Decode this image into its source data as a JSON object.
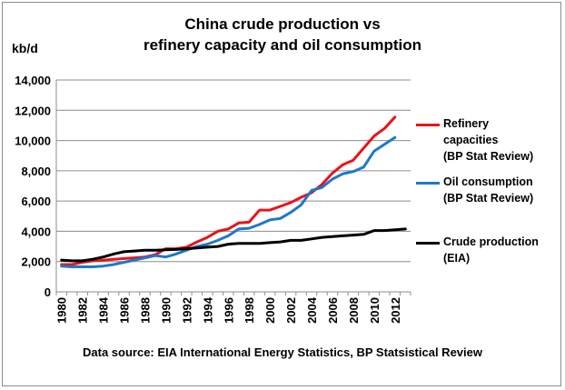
{
  "title_line1": "China crude production vs",
  "title_line2": "refinery capacity and oil consumption",
  "units_label": "kb/d",
  "source_text": "Data source: EIA International Energy Statistics, BP Statsistical Review",
  "chart_data": {
    "type": "line",
    "title": "China crude production vs refinery capacity and oil consumption",
    "ylabel": "kb/d",
    "xlabel": "",
    "ylim": [
      0,
      14000
    ],
    "yticks": [
      "0",
      "2,000",
      "4,000",
      "6,000",
      "8,000",
      "10,000",
      "12,000",
      "14,000"
    ],
    "xticks": [
      "1980",
      "1982",
      "1984",
      "1986",
      "1988",
      "1990",
      "1992",
      "1994",
      "1996",
      "1998",
      "2000",
      "2002",
      "2004",
      "2006",
      "2008",
      "2010",
      "2012"
    ],
    "grid": "horizontal",
    "legend_position": "right",
    "series": [
      {
        "name": "Refinery capacities (BP Stat Review)",
        "color": "#e8141b",
        "x": [
          1980,
          1981,
          1982,
          1983,
          1984,
          1985,
          1986,
          1987,
          1988,
          1989,
          1990,
          1991,
          1992,
          1993,
          1994,
          1995,
          1996,
          1997,
          1998,
          1999,
          2000,
          2001,
          2002,
          2003,
          2004,
          2005,
          2006,
          2007,
          2008,
          2009,
          2010,
          2011,
          2012
        ],
        "values": [
          1800,
          1800,
          1950,
          2050,
          2100,
          2150,
          2200,
          2250,
          2300,
          2450,
          2850,
          2850,
          2950,
          3300,
          3600,
          4000,
          4150,
          4550,
          4600,
          5400,
          5400,
          5650,
          5900,
          6250,
          6550,
          7100,
          7850,
          8400,
          8700,
          9500,
          10300,
          10800,
          11550
        ]
      },
      {
        "name": "Oil consumption (BP Stat Review)",
        "color": "#1f78c8",
        "x": [
          1980,
          1981,
          1982,
          1983,
          1984,
          1985,
          1986,
          1987,
          1988,
          1989,
          1990,
          1991,
          1992,
          1993,
          1994,
          1995,
          1996,
          1997,
          1998,
          1999,
          2000,
          2001,
          2002,
          2003,
          2004,
          2005,
          2006,
          2007,
          2008,
          2009,
          2010,
          2011,
          2012
        ],
        "values": [
          1700,
          1650,
          1650,
          1650,
          1700,
          1800,
          1950,
          2100,
          2250,
          2400,
          2300,
          2500,
          2750,
          3000,
          3150,
          3400,
          3700,
          4150,
          4200,
          4450,
          4750,
          4850,
          5250,
          5750,
          6700,
          6900,
          7450,
          7800,
          7950,
          8250,
          9300,
          9750,
          10200
        ]
      },
      {
        "name": "Crude production (EIA)",
        "color": "#000000",
        "x": [
          1980,
          1981,
          1982,
          1983,
          1984,
          1985,
          1986,
          1987,
          1988,
          1989,
          1990,
          1991,
          1992,
          1993,
          1994,
          1995,
          1996,
          1997,
          1998,
          1999,
          2000,
          2001,
          2002,
          2003,
          2004,
          2005,
          2006,
          2007,
          2008,
          2009,
          2010,
          2011,
          2012,
          2013
        ],
        "values": [
          2100,
          2050,
          2050,
          2150,
          2300,
          2500,
          2650,
          2700,
          2750,
          2750,
          2780,
          2800,
          2850,
          2900,
          2950,
          3000,
          3150,
          3200,
          3200,
          3200,
          3250,
          3300,
          3400,
          3400,
          3500,
          3600,
          3650,
          3700,
          3750,
          3800,
          4050,
          4050,
          4100,
          4150
        ]
      }
    ]
  }
}
